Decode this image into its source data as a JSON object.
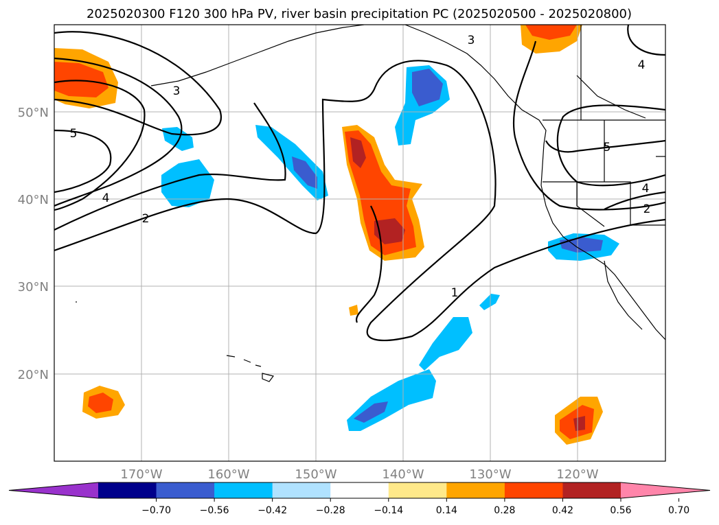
{
  "title": "2025020300 F120 300 hPa PV, river basin precipitation PC (2025020500 - 2025020800)",
  "map": {
    "lon_range": [
      -180,
      -110
    ],
    "lat_range": [
      10,
      60
    ],
    "lon_ticks": [
      {
        "lon": -170,
        "label": "170°W"
      },
      {
        "lon": -160,
        "label": "160°W"
      },
      {
        "lon": -150,
        "label": "150°W"
      },
      {
        "lon": -140,
        "label": "140°W"
      },
      {
        "lon": -130,
        "label": "130°W"
      },
      {
        "lon": -120,
        "label": "120°W"
      }
    ],
    "lat_ticks": [
      {
        "lat": 50,
        "label": "50°N"
      },
      {
        "lat": 40,
        "label": "40°N"
      },
      {
        "lat": 30,
        "label": "30°N"
      },
      {
        "lat": 20,
        "label": "20°N"
      }
    ],
    "pv_contour_labels": [
      "5",
      "4",
      "3",
      "2",
      "1",
      "3",
      "4",
      "5",
      "4",
      "2"
    ]
  },
  "colorbar": {
    "levels": [
      -0.7,
      -0.56,
      -0.42,
      -0.28,
      -0.14,
      0.14,
      0.28,
      0.42,
      0.56,
      0.7
    ],
    "tick_labels": [
      "−0.70",
      "−0.56",
      "−0.42",
      "−0.28",
      "−0.14",
      "0.14",
      "0.28",
      "0.42",
      "0.56",
      "0.70"
    ],
    "colors": [
      "#9932cc",
      "#00008b",
      "#3a5ccf",
      "#00bfff",
      "#b0e2ff",
      "#ffffff",
      "#ffe98a",
      "#ffa500",
      "#ff4500",
      "#b22222",
      "#ff85aa"
    ],
    "extend": "both"
  }
}
